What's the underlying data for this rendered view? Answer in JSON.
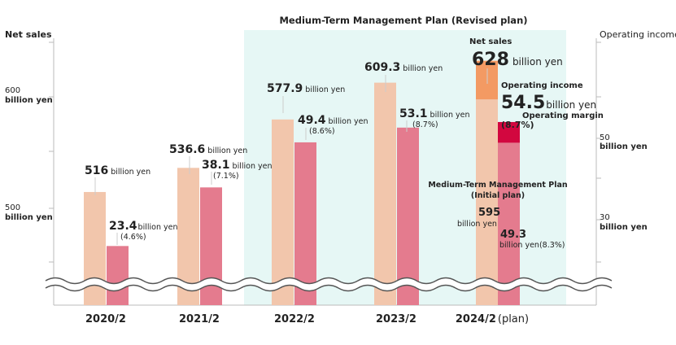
{
  "chart_data": {
    "type": "bar",
    "title": "",
    "categories": [
      "2020/2",
      "2021/2",
      "2022/2",
      "2023/2",
      "2024/2"
    ],
    "plan_suffix": "(plan)",
    "highlight_label": "Medium-Term Management Plan (Revised plan)",
    "left_axis": {
      "label": "Net sales",
      "ticks": [
        {
          "value": 500,
          "label": "500"
        },
        {
          "value": 600,
          "label": "600"
        }
      ],
      "unit": "billion yen"
    },
    "right_axis": {
      "label": "Operating income",
      "ticks": [
        {
          "value": 30,
          "label": "30"
        },
        {
          "value": 50,
          "label": "50"
        }
      ],
      "unit": "billion yen"
    },
    "unit_text": "billion yen",
    "series": [
      {
        "name": "Net sales",
        "color": "#f2c6ac",
        "values": [
          516,
          536.6,
          577.9,
          609.3,
          628
        ],
        "labels": [
          "516",
          "536.6",
          "577.9",
          "609.3",
          "628"
        ]
      },
      {
        "name": "Operating income",
        "color": "#e47b8e",
        "values": [
          23.4,
          38.1,
          49.4,
          53.1,
          54.5
        ],
        "labels": [
          "23.4",
          "38.1",
          "49.4",
          "53.1",
          "54.5"
        ],
        "margins": [
          "(4.6%)",
          "(7.1%)",
          "(8.6%)",
          "(8.7%)",
          "(8.7%)"
        ]
      }
    ],
    "plan_2024": {
      "net_sales_label": "Net sales",
      "operating_income_label": "Operating income",
      "operating_margin_label": "Operating margin",
      "margin": "(8.7%)",
      "net_sales_increment_color": "#f39a63",
      "operating_income_increment_color": "#d2073f"
    },
    "initial_plan": {
      "label_line1": "Medium-Term Management Plan",
      "label_line2": "(Initial plan)",
      "net_sales": 595,
      "net_sales_label": "595",
      "operating_income": 49.3,
      "operating_income_label": "49.3",
      "margin": "(8.3%)"
    }
  }
}
